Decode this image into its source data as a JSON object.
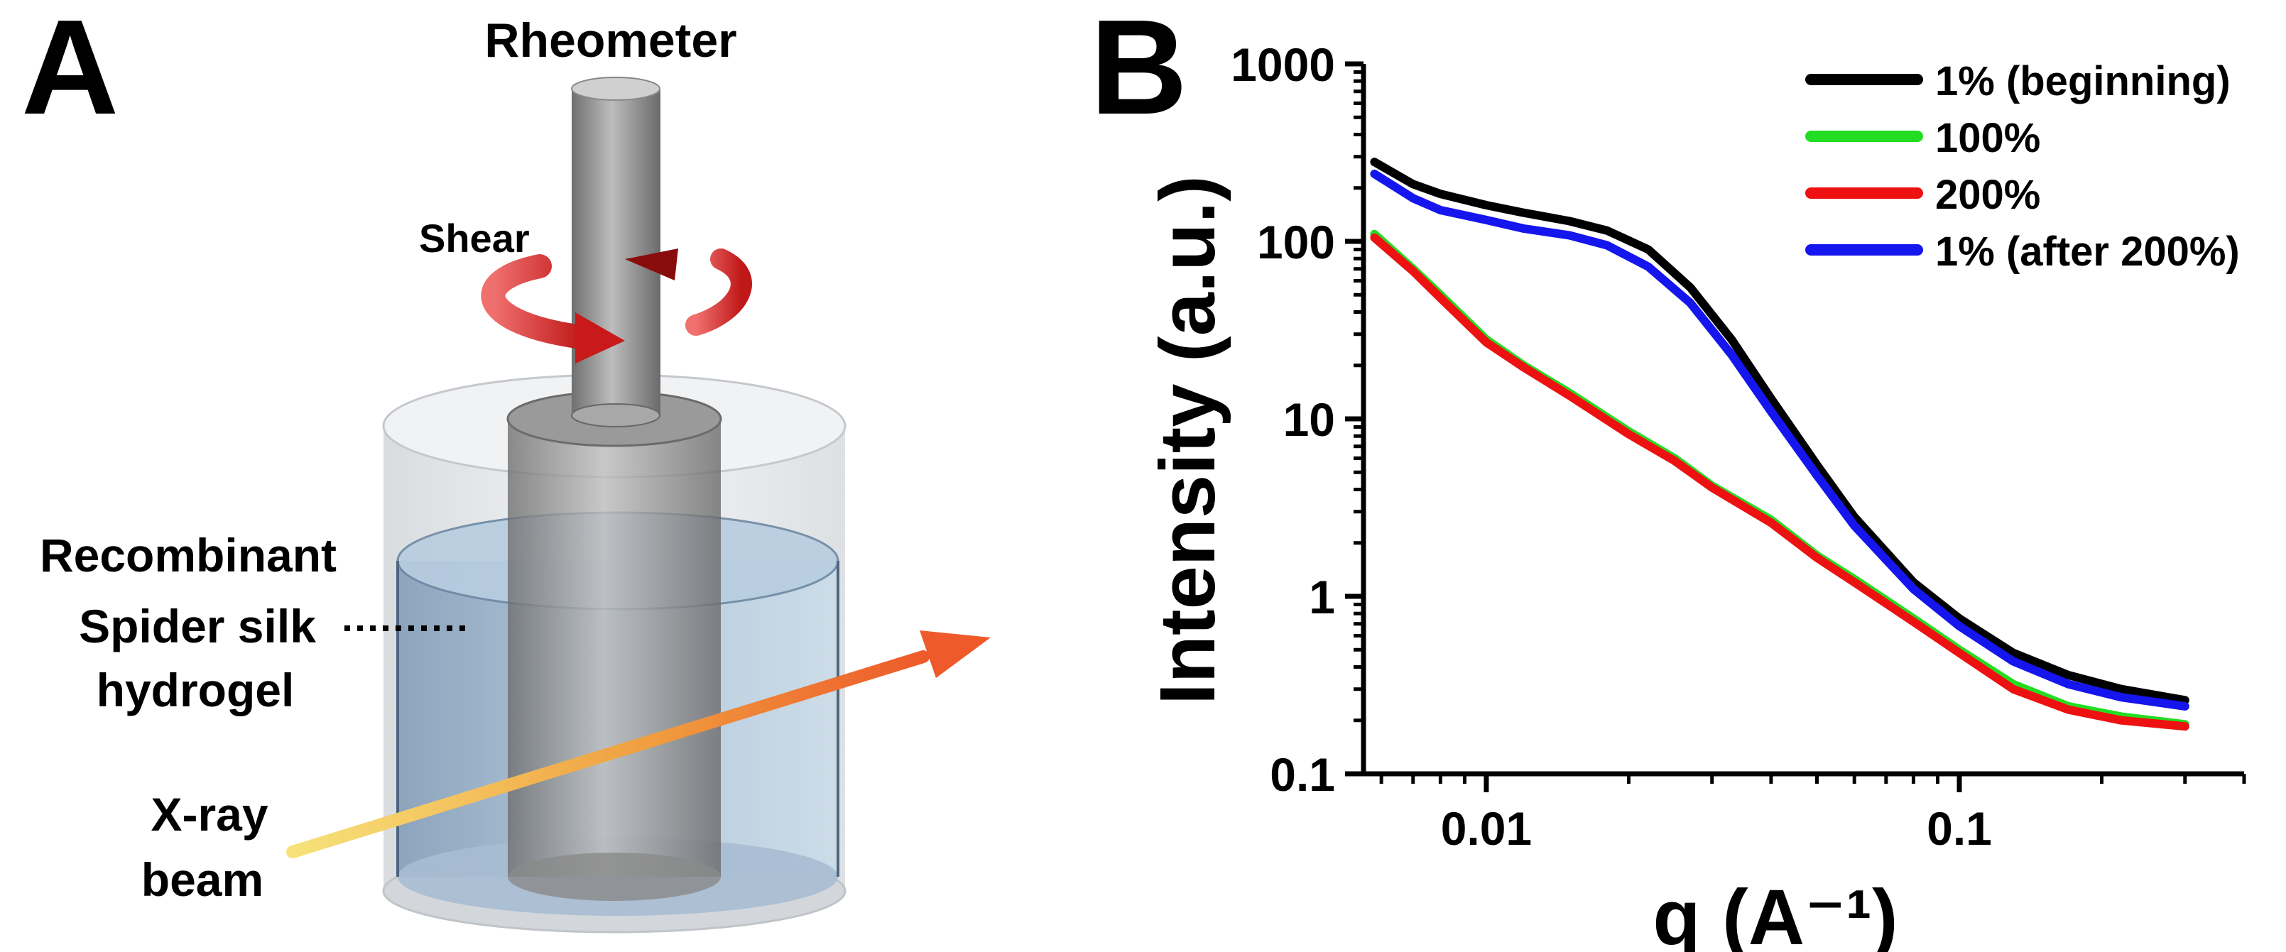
{
  "panel_a": {
    "letter": "A",
    "rheometer_label": "Rheometer",
    "shear_label": "Shear",
    "hydrogel_label": [
      "Recombinant",
      "Spider silk",
      "hydrogel"
    ],
    "beam_label": [
      "X-ray",
      "beam"
    ]
  },
  "panel_b": {
    "letter": "B"
  },
  "colors": {
    "series_1": "#000000",
    "series_2": "#22dd22",
    "series_3": "#ee1111",
    "series_4": "#1515ee",
    "arrow_red": "#e03030",
    "beam_yellow": "#f4d24a",
    "beam_orange": "#f06030",
    "cup_fill": "#d8dde2",
    "gel_fill": "#a8c0d8",
    "rotor_fill": "#8c8c8c"
  },
  "chart_data": {
    "type": "line",
    "title": "",
    "xlabel": "q (A⁻¹)",
    "ylabel": "Intensity (a.u.)",
    "xscale": "log",
    "yscale": "log",
    "xlim": [
      0.0055,
      0.4
    ],
    "ylim": [
      0.1,
      1000
    ],
    "x_ticks": [
      0.01,
      0.1
    ],
    "x_tick_labels": [
      "0.01",
      "0.1"
    ],
    "y_ticks": [
      0.1,
      1,
      10,
      100,
      1000
    ],
    "y_tick_labels": [
      "0.1",
      "1",
      "10",
      "100",
      "1000"
    ],
    "legend_position": "top-right",
    "series": [
      {
        "name": "1% (beginning)",
        "color_key": "series_1",
        "x": [
          0.0058,
          0.007,
          0.008,
          0.01,
          0.012,
          0.015,
          0.018,
          0.022,
          0.027,
          0.033,
          0.04,
          0.05,
          0.06,
          0.08,
          0.1,
          0.13,
          0.17,
          0.22,
          0.3
        ],
        "y": [
          280,
          210,
          185,
          160,
          145,
          130,
          115,
          90,
          55,
          28,
          13,
          5.5,
          2.8,
          1.2,
          0.75,
          0.48,
          0.36,
          0.3,
          0.26
        ]
      },
      {
        "name": "100%",
        "color_key": "series_2",
        "x": [
          0.0058,
          0.007,
          0.008,
          0.01,
          0.012,
          0.015,
          0.02,
          0.025,
          0.03,
          0.04,
          0.05,
          0.06,
          0.08,
          0.1,
          0.13,
          0.17,
          0.22,
          0.3
        ],
        "y": [
          110,
          70,
          50,
          28,
          20,
          14,
          8.5,
          6,
          4.2,
          2.7,
          1.7,
          1.25,
          0.75,
          0.5,
          0.32,
          0.24,
          0.21,
          0.19
        ]
      },
      {
        "name": "200%",
        "color_key": "series_3",
        "x": [
          0.0058,
          0.007,
          0.008,
          0.01,
          0.012,
          0.015,
          0.02,
          0.025,
          0.03,
          0.04,
          0.05,
          0.06,
          0.08,
          0.1,
          0.13,
          0.17,
          0.22,
          0.3
        ],
        "y": [
          105,
          68,
          48,
          27,
          19.5,
          13.5,
          8.2,
          5.8,
          4.1,
          2.6,
          1.65,
          1.2,
          0.72,
          0.48,
          0.3,
          0.23,
          0.2,
          0.185
        ]
      },
      {
        "name": "1% (after 200%)",
        "color_key": "series_4",
        "x": [
          0.0058,
          0.007,
          0.008,
          0.01,
          0.012,
          0.015,
          0.018,
          0.022,
          0.027,
          0.033,
          0.04,
          0.05,
          0.06,
          0.08,
          0.1,
          0.13,
          0.17,
          0.22,
          0.3
        ],
        "y": [
          240,
          175,
          150,
          132,
          118,
          108,
          95,
          72,
          45,
          23,
          11,
          4.8,
          2.5,
          1.1,
          0.68,
          0.43,
          0.32,
          0.27,
          0.24
        ]
      }
    ]
  }
}
